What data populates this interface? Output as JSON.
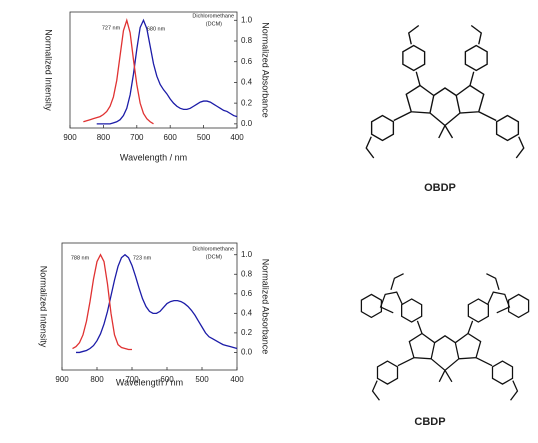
{
  "chart_data": [
    {
      "type": "line",
      "xlabel": "Wavelength / nm",
      "ylabel": "Normalized Absorbance",
      "y2label": "Normalized Intensity",
      "annotation": [
        "Dichloromethane",
        "(DCM)"
      ],
      "structure_label": "OBDP",
      "xlim": [
        400,
        900
      ],
      "xticks": [
        400,
        500,
        600,
        700,
        800,
        900
      ],
      "ylim": [
        -0.04,
        1.08
      ],
      "yticks": [
        {
          "value": 0,
          "label": "0.0"
        },
        0.2,
        0.4,
        0.6,
        0.8,
        {
          "value": 1,
          "label": "1.0"
        }
      ],
      "y2lim": [
        -0.04,
        1.08
      ],
      "series": [
        {
          "label": "680 nm",
          "color": "#1c1ca8",
          "x": [
            400,
            410,
            420,
            430,
            440,
            450,
            460,
            470,
            480,
            490,
            500,
            510,
            520,
            530,
            540,
            550,
            560,
            570,
            580,
            590,
            600,
            610,
            620,
            630,
            640,
            650,
            660,
            670,
            680,
            690,
            700,
            710,
            720,
            730,
            740,
            750,
            760,
            770,
            780,
            790,
            800,
            810,
            820
          ],
          "values": [
            0.07,
            0.08,
            0.1,
            0.12,
            0.13,
            0.15,
            0.17,
            0.19,
            0.21,
            0.22,
            0.22,
            0.21,
            0.19,
            0.17,
            0.15,
            0.14,
            0.14,
            0.15,
            0.17,
            0.2,
            0.24,
            0.29,
            0.33,
            0.38,
            0.46,
            0.58,
            0.75,
            0.92,
            1.0,
            0.93,
            0.72,
            0.48,
            0.28,
            0.15,
            0.08,
            0.04,
            0.02,
            0.01,
            0,
            0,
            0,
            0,
            0
          ]
        },
        {
          "label": "727 nm",
          "color": "#e03232",
          "axis": "y2",
          "x": [
            650,
            660,
            670,
            680,
            690,
            700,
            710,
            720,
            730,
            740,
            750,
            760,
            770,
            780,
            790,
            800,
            810,
            820,
            830,
            840,
            850,
            860
          ],
          "values": [
            0,
            0.02,
            0.05,
            0.1,
            0.2,
            0.38,
            0.62,
            0.88,
            1.0,
            0.9,
            0.66,
            0.42,
            0.26,
            0.17,
            0.12,
            0.09,
            0.07,
            0.06,
            0.05,
            0.04,
            0.03,
            0.02
          ]
        }
      ]
    },
    {
      "type": "line",
      "xlabel": "Wavelength / nm",
      "ylabel": "Normalized Absorbance",
      "y2label": "Normalized Intensity",
      "annotation": [
        "Dichloromethane",
        "(DCM)"
      ],
      "structure_label": "CBDP",
      "xlim": [
        400,
        900
      ],
      "xticks": [
        400,
        500,
        600,
        700,
        800,
        900
      ],
      "ylim": [
        -0.18,
        1.12
      ],
      "yticks": [
        {
          "value": 0,
          "label": "0.0"
        },
        0.2,
        0.4,
        0.6,
        0.8,
        {
          "value": 1,
          "label": "1.0"
        }
      ],
      "y2lim": [
        -0.18,
        1.12
      ],
      "series": [
        {
          "label": "723 nm",
          "color": "#1c1ca8",
          "x": [
            400,
            410,
            420,
            430,
            440,
            450,
            460,
            470,
            480,
            490,
            500,
            510,
            520,
            530,
            540,
            550,
            560,
            570,
            580,
            590,
            600,
            610,
            620,
            630,
            640,
            650,
            660,
            670,
            680,
            690,
            700,
            710,
            720,
            730,
            740,
            750,
            760,
            770,
            780,
            790,
            800,
            810,
            820,
            830,
            840,
            850,
            860
          ],
          "values": [
            0.04,
            0.05,
            0.06,
            0.07,
            0.08,
            0.1,
            0.12,
            0.14,
            0.16,
            0.2,
            0.26,
            0.32,
            0.38,
            0.43,
            0.47,
            0.5,
            0.52,
            0.53,
            0.53,
            0.52,
            0.5,
            0.46,
            0.42,
            0.4,
            0.4,
            0.42,
            0.47,
            0.55,
            0.66,
            0.78,
            0.89,
            0.97,
            1.0,
            0.97,
            0.88,
            0.74,
            0.58,
            0.42,
            0.29,
            0.19,
            0.12,
            0.07,
            0.04,
            0.02,
            0.01,
            0,
            0
          ]
        },
        {
          "label": "788 nm",
          "color": "#e03232",
          "axis": "y2",
          "x": [
            700,
            710,
            720,
            730,
            740,
            750,
            760,
            770,
            780,
            790,
            800,
            810,
            820,
            830,
            840,
            850,
            860,
            870
          ],
          "values": [
            0.03,
            0.03,
            0.04,
            0.05,
            0.08,
            0.18,
            0.4,
            0.7,
            0.93,
            1.0,
            0.93,
            0.75,
            0.52,
            0.32,
            0.18,
            0.1,
            0.06,
            0.04
          ]
        }
      ]
    }
  ]
}
